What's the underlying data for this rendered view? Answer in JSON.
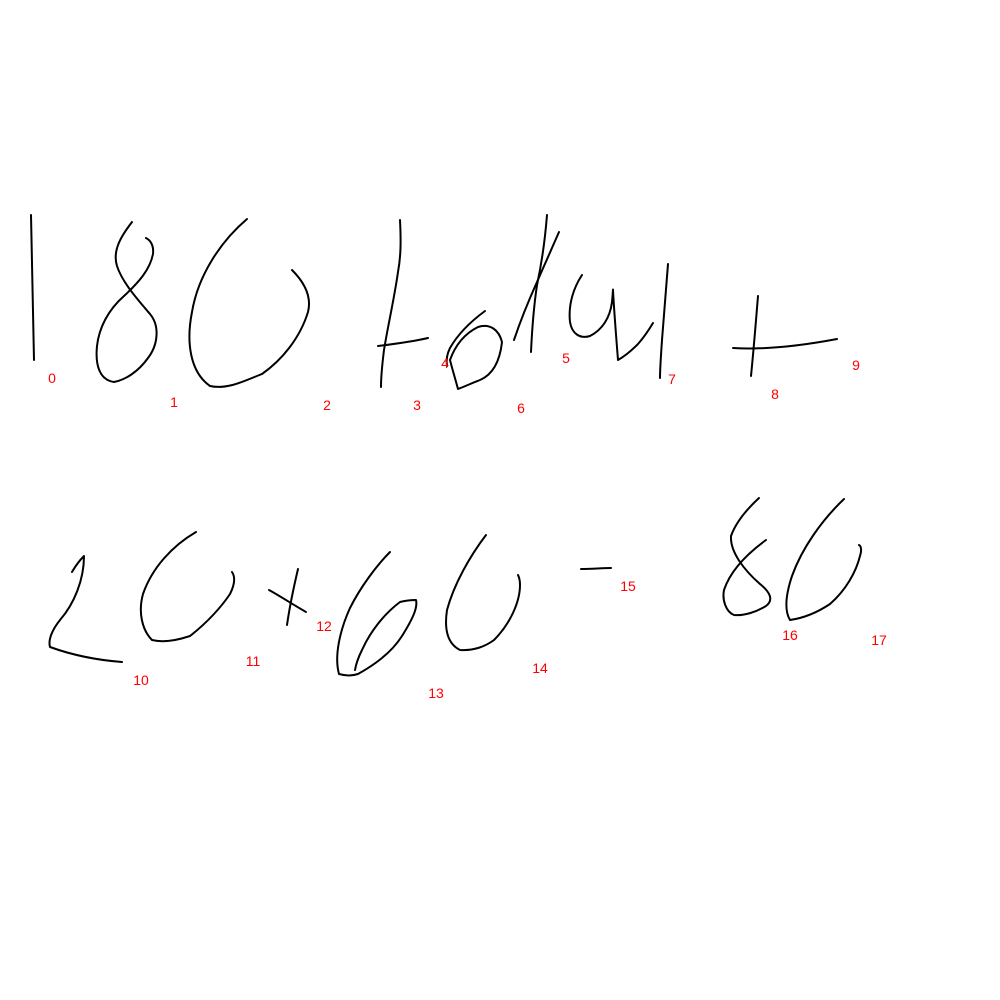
{
  "ink_color": "#000000",
  "label_color": "#ff0000",
  "background_color": "#ffffff",
  "strokes": [
    {
      "id": "0",
      "label": "0"
    },
    {
      "id": "1",
      "label": "1"
    },
    {
      "id": "2",
      "label": "2"
    },
    {
      "id": "3",
      "label": "3"
    },
    {
      "id": "4",
      "label": "4"
    },
    {
      "id": "5",
      "label": "5"
    },
    {
      "id": "6",
      "label": "6"
    },
    {
      "id": "7",
      "label": "7"
    },
    {
      "id": "8",
      "label": "8"
    },
    {
      "id": "9",
      "label": "9"
    },
    {
      "id": "10",
      "label": "10"
    },
    {
      "id": "11",
      "label": "11"
    },
    {
      "id": "12",
      "label": "12"
    },
    {
      "id": "13",
      "label": "13"
    },
    {
      "id": "14",
      "label": "14"
    },
    {
      "id": "15",
      "label": "15"
    },
    {
      "id": "16",
      "label": "16"
    },
    {
      "id": "17",
      "label": "17"
    }
  ]
}
